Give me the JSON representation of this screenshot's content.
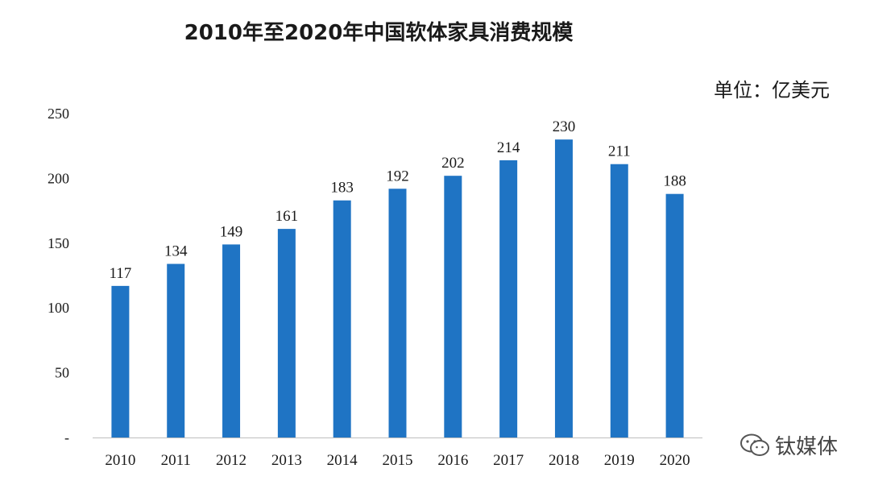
{
  "chart_data": {
    "type": "bar",
    "title": "2010年至2020年中国软体家具消费规模",
    "unit": "单位：亿美元",
    "xlabel": "",
    "ylabel": "",
    "categories": [
      "2010",
      "2011",
      "2012",
      "2013",
      "2014",
      "2015",
      "2016",
      "2017",
      "2018",
      "2019",
      "2020"
    ],
    "values": [
      117,
      134,
      149,
      161,
      183,
      192,
      202,
      214,
      230,
      211,
      188
    ],
    "ylim": [
      0,
      250
    ],
    "yticks": [
      0,
      50,
      100,
      150,
      200,
      250
    ],
    "ytick_labels": [
      "-",
      "50",
      "100",
      "150",
      "200",
      "250"
    ],
    "bar_color": "#1f74c4",
    "grid": false,
    "legend": "none"
  },
  "watermark": {
    "text": "钛媒体",
    "icon": "wechat-icon"
  }
}
